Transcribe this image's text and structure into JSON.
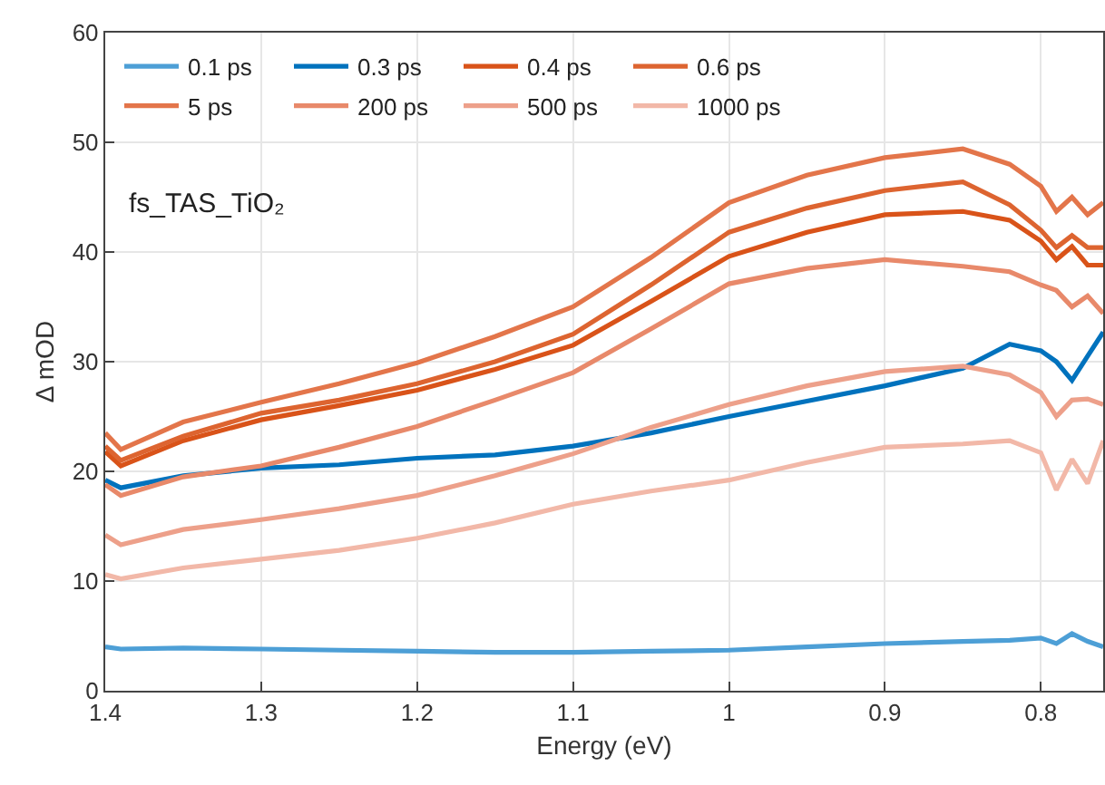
{
  "chart_data": {
    "type": "line",
    "xlabel": "Energy (eV)",
    "ylabel": "Δ mOD",
    "annotations": [
      "fs_TAS_TiO₂"
    ],
    "x": [
      1.4,
      1.39,
      1.35,
      1.3,
      1.25,
      1.2,
      1.15,
      1.1,
      1.05,
      1.0,
      0.95,
      0.9,
      0.85,
      0.82,
      0.8,
      0.79,
      0.78,
      0.77,
      0.76
    ],
    "series": [
      {
        "name": "0.1 ps",
        "color": "#4d9fd6",
        "values": [
          4,
          3.8,
          3.9,
          3.8,
          3.7,
          3.6,
          3.5,
          3.5,
          3.6,
          3.7,
          4,
          4.3,
          4.5,
          4.6,
          4.8,
          4.3,
          5.2,
          4.5,
          4
        ]
      },
      {
        "name": "0.3 ps",
        "color": "#0072bd",
        "values": [
          19.2,
          18.5,
          19.6,
          20.3,
          20.6,
          21.2,
          21.5,
          22.3,
          23.5,
          25,
          26.4,
          27.8,
          29.4,
          31.6,
          31,
          30,
          28.3,
          30.5,
          32.7
        ]
      },
      {
        "name": "0.4 ps",
        "color": "#d95319",
        "values": [
          21.8,
          20.5,
          22.8,
          24.7,
          26,
          27.4,
          29.3,
          31.5,
          35.5,
          39.6,
          41.8,
          43.4,
          43.7,
          42.9,
          41,
          39.3,
          40.5,
          38.8,
          38.8
        ]
      },
      {
        "name": "0.6 ps",
        "color": "#dd6430",
        "values": [
          22.3,
          21,
          23.2,
          25.3,
          26.5,
          28,
          30,
          32.5,
          37,
          41.8,
          44,
          45.6,
          46.4,
          44.3,
          42,
          40.4,
          41.5,
          40.4,
          40.4
        ]
      },
      {
        "name": "5 ps",
        "color": "#e3754a",
        "values": [
          23.5,
          22,
          24.5,
          26.3,
          28,
          29.9,
          32.3,
          35,
          39.5,
          44.5,
          47,
          48.6,
          49.4,
          48,
          46,
          43.7,
          45,
          43.4,
          44.5
        ]
      },
      {
        "name": "200 ps",
        "color": "#e8896a",
        "values": [
          18.8,
          17.8,
          19.5,
          20.5,
          22.2,
          24.1,
          26.5,
          29,
          33,
          37.1,
          38.5,
          39.3,
          38.7,
          38.2,
          37,
          36.5,
          35,
          36,
          34.4
        ]
      },
      {
        "name": "500 ps",
        "color": "#eda08a",
        "values": [
          14.2,
          13.3,
          14.7,
          15.6,
          16.6,
          17.8,
          19.6,
          21.6,
          24,
          26.1,
          27.8,
          29.1,
          29.6,
          28.8,
          27.2,
          25,
          26.5,
          26.6,
          26.1
        ]
      },
      {
        "name": "1000 ps",
        "color": "#f2b8a8",
        "values": [
          10.6,
          10.2,
          11.2,
          12,
          12.8,
          13.9,
          15.3,
          17,
          18.2,
          19.2,
          20.8,
          22.2,
          22.5,
          22.8,
          21.7,
          18.3,
          21.1,
          18.9,
          22.8
        ]
      }
    ],
    "xlim": [
      1.4,
      0.76
    ],
    "xticks": [
      1.4,
      1.3,
      1.2,
      1.1,
      1,
      0.9,
      0.8
    ],
    "ylim": [
      0,
      60
    ],
    "yticks": [
      0,
      10,
      20,
      30,
      40,
      50,
      60
    ],
    "grid": true,
    "legend": "top left",
    "marker": "none",
    "line_style": "solid"
  }
}
